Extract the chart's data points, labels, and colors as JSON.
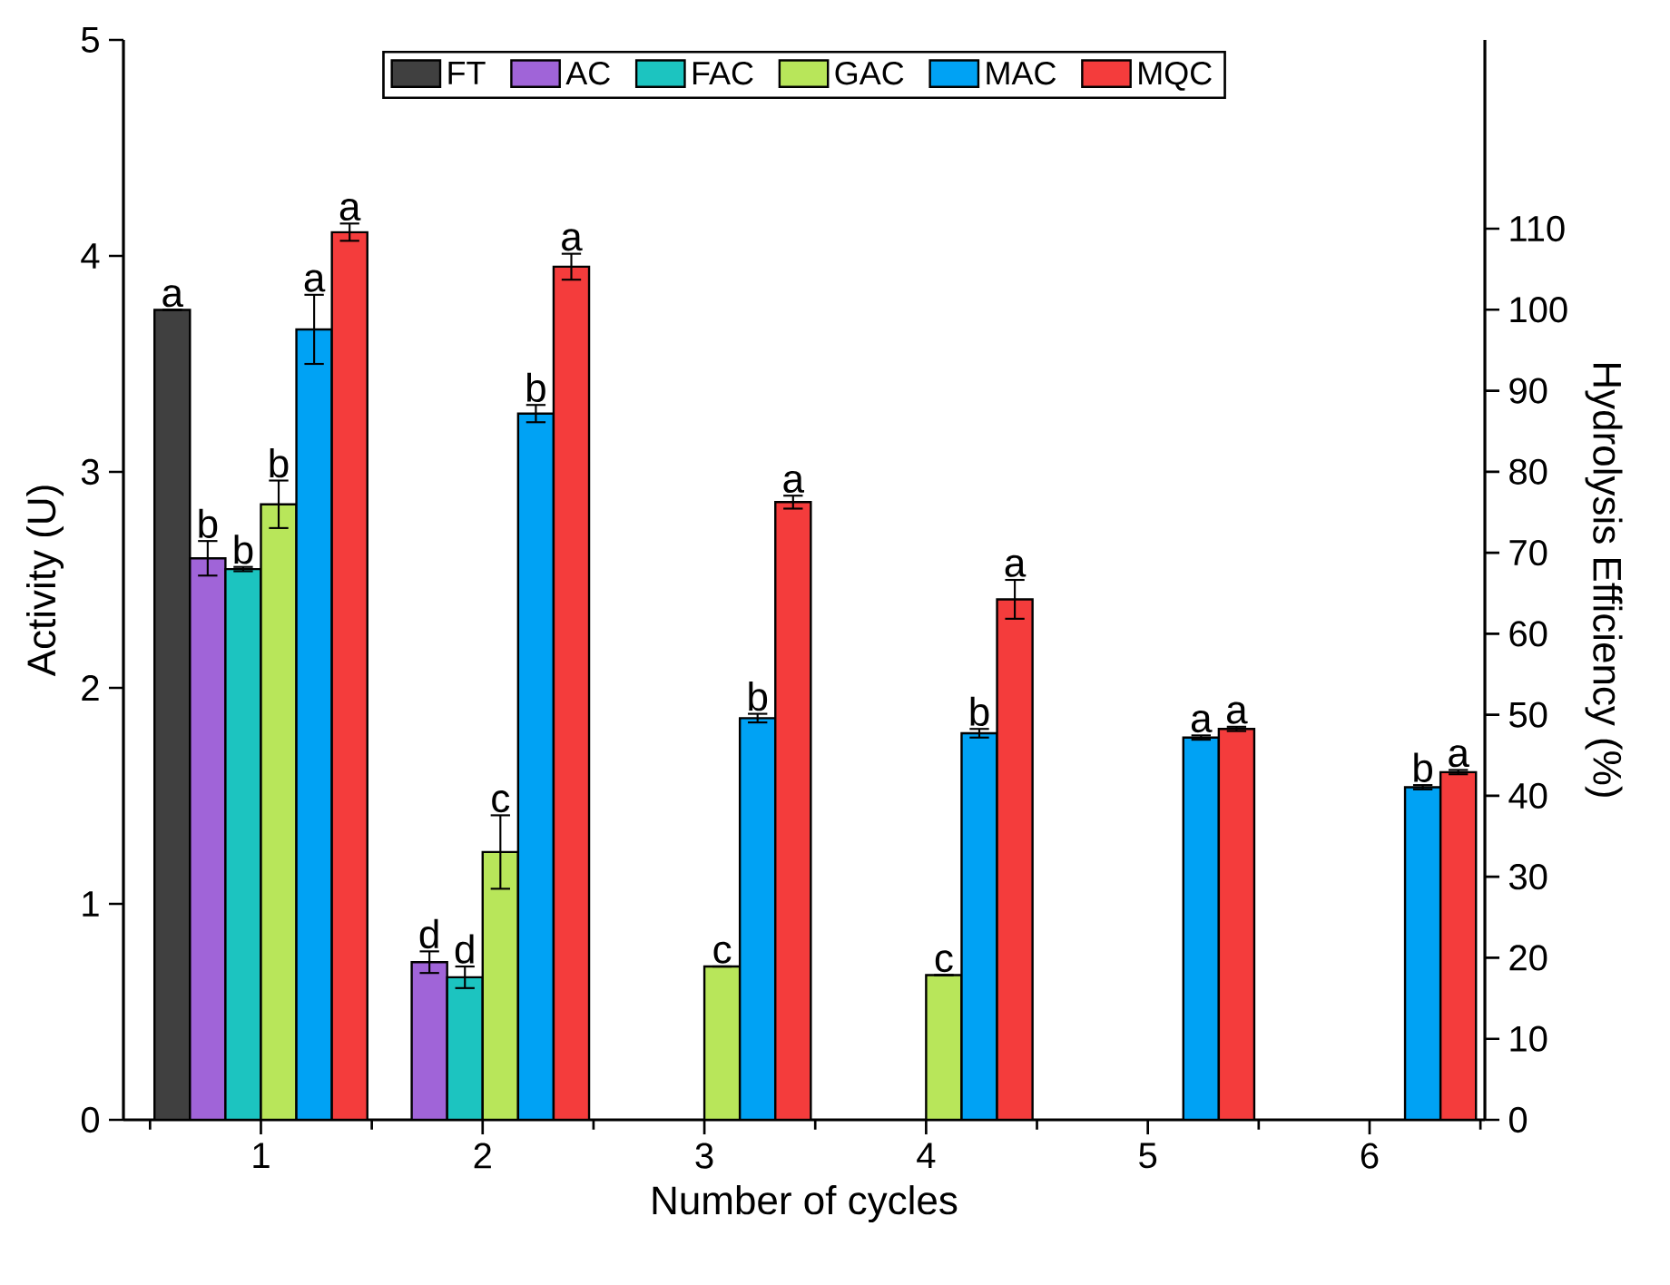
{
  "chart_data": {
    "type": "bar",
    "xlabel": "Number of cycles",
    "ylabel": "Activity (U)",
    "y2label": "Hydrolysis Efficiency (%)",
    "categories": [
      "1",
      "2",
      "3",
      "4",
      "5",
      "6"
    ],
    "ylim": [
      0,
      5
    ],
    "yticks": [
      0,
      1,
      2,
      3,
      4,
      5
    ],
    "y2lim": [
      0,
      133.3
    ],
    "y2ticks": [
      0,
      10,
      20,
      30,
      40,
      50,
      60,
      70,
      80,
      90,
      100,
      110
    ],
    "legend": "top",
    "series": [
      {
        "name": "FT",
        "color": "#404040",
        "values": [
          3.75,
          null,
          null,
          null,
          null,
          null
        ],
        "value_labels": [
          "a",
          null,
          null,
          null,
          null,
          null
        ]
      },
      {
        "name": "AC",
        "color": "#a064d8",
        "values": [
          2.6,
          0.73,
          null,
          null,
          null,
          null
        ],
        "errors": [
          0.08,
          0.05,
          null,
          null,
          null,
          null
        ],
        "value_labels": [
          "b",
          "d",
          null,
          null,
          null,
          null
        ]
      },
      {
        "name": "FAC",
        "color": "#1cc4c0",
        "values": [
          2.55,
          0.66,
          null,
          null,
          null,
          null
        ],
        "errors": [
          0.01,
          0.05,
          null,
          null,
          null,
          null
        ],
        "value_labels": [
          "b",
          "d",
          null,
          null,
          null,
          null
        ]
      },
      {
        "name": "GAC",
        "color": "#b8e65a",
        "values": [
          2.85,
          1.24,
          0.71,
          0.67,
          null,
          null
        ],
        "errors": [
          0.11,
          0.17,
          null,
          null,
          null,
          null
        ],
        "value_labels": [
          "b",
          "c",
          "c",
          "c",
          null,
          null
        ]
      },
      {
        "name": "MAC",
        "color": "#00a2f4",
        "values": [
          3.66,
          3.27,
          1.86,
          1.79,
          1.77,
          1.54
        ],
        "errors": [
          0.16,
          0.04,
          0.02,
          0.02,
          0.01,
          0.01
        ],
        "value_labels": [
          "a",
          "b",
          "b",
          "b",
          "a",
          "b"
        ]
      },
      {
        "name": "MQC",
        "color": "#f43c3c",
        "values": [
          4.11,
          3.95,
          2.86,
          2.41,
          1.81,
          1.61
        ],
        "errors": [
          0.04,
          0.06,
          0.03,
          0.09,
          0.01,
          0.01
        ],
        "value_labels": [
          "a",
          "a",
          "a",
          "a",
          "a",
          "a"
        ]
      }
    ]
  }
}
